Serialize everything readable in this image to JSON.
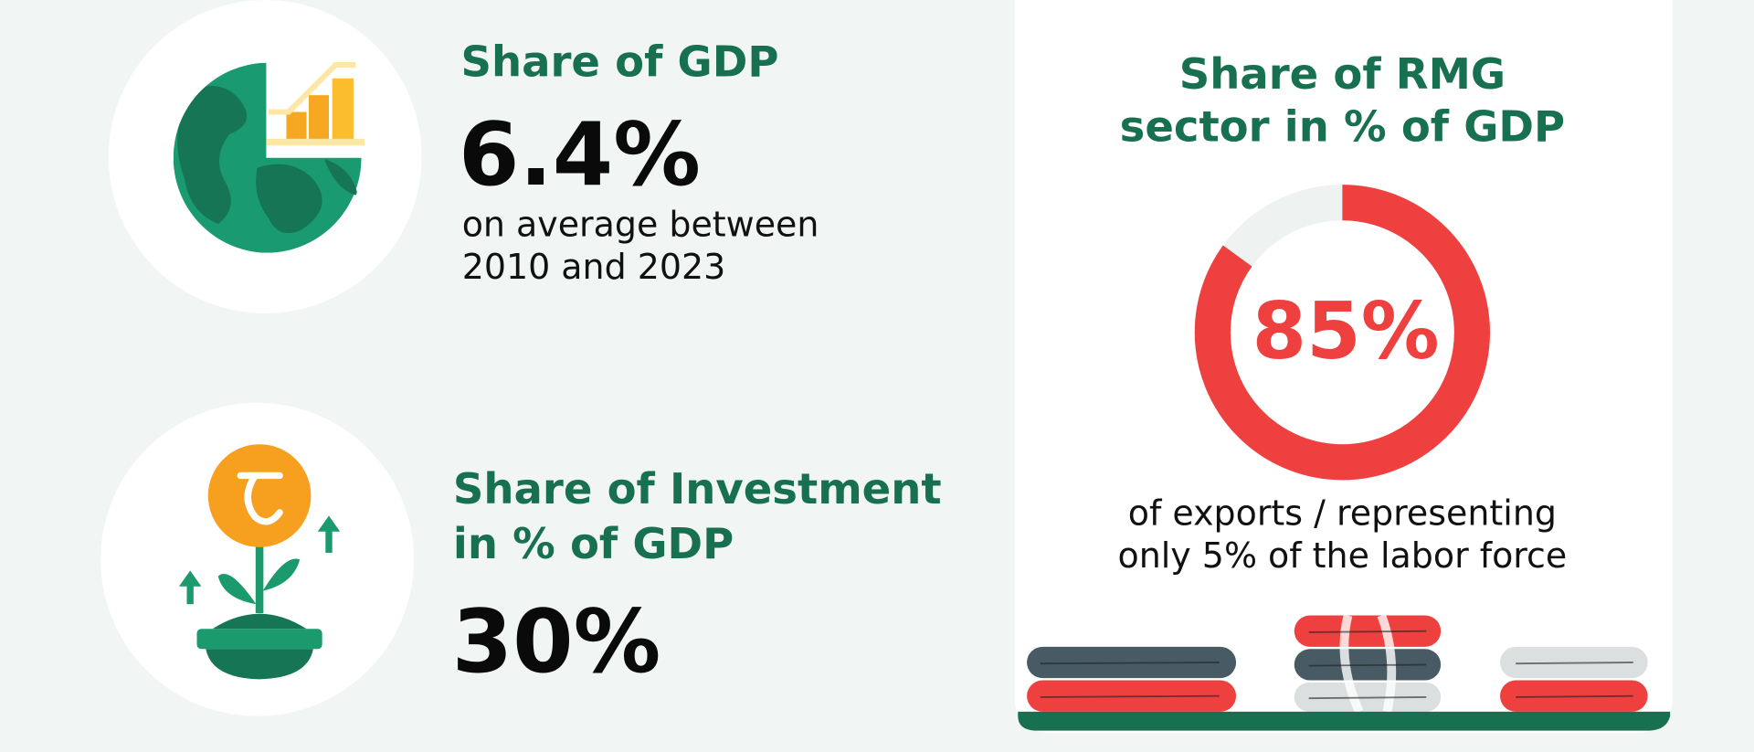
{
  "gdp": {
    "title": "Share of GDP",
    "value": "6.4%",
    "note": [
      "on average between",
      "2010 and 2023"
    ]
  },
  "investment": {
    "title": [
      "Share of Investment",
      "in % of GDP"
    ],
    "value": "30%"
  },
  "rmg": {
    "title": [
      "Share of RMG",
      "sector in % of GDP"
    ],
    "donut": {
      "value": 85,
      "label": "85%"
    },
    "note": [
      "of exports / representing",
      "only 5% of the labor force"
    ]
  }
}
